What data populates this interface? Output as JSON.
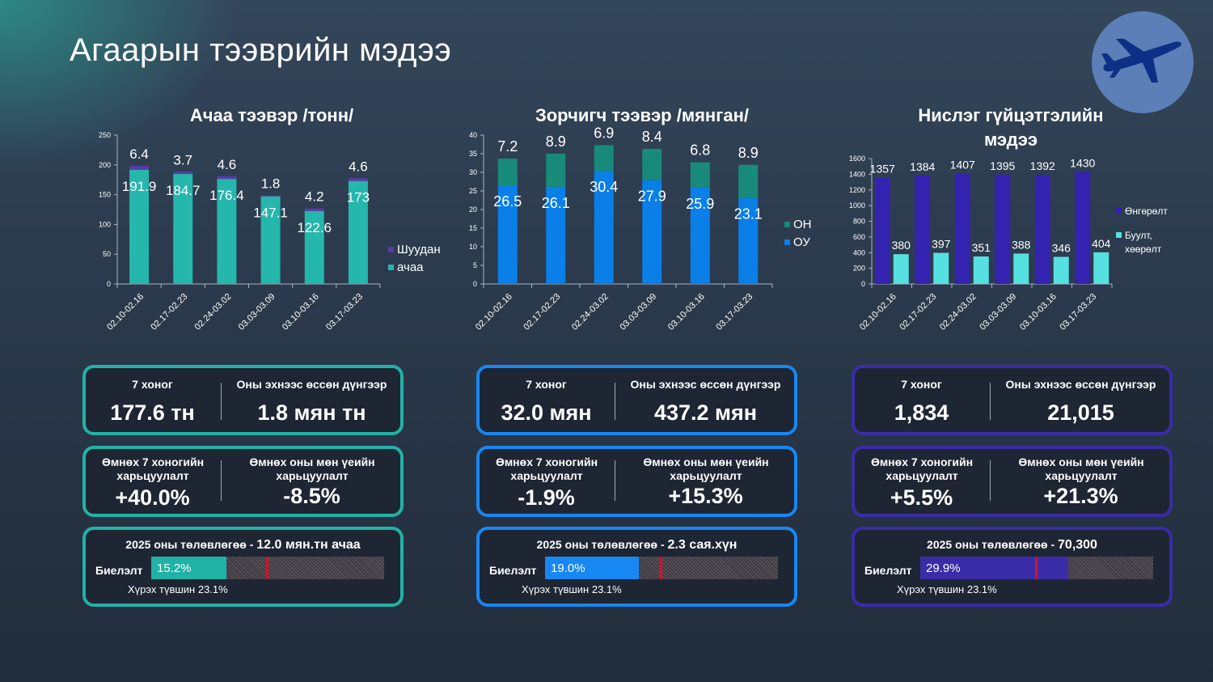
{
  "title": "Агаарын тээврийн мэдээ",
  "colors": {
    "teal": "#21b2a6",
    "blue": "#1787f3",
    "purple": "#3a2ca8",
    "cargo": "#25b6ac",
    "mail": "#5b3aa8",
    "intl": "#0a7fe8",
    "dom": "#188a7a",
    "regular": "#3323b0",
    "charter": "#56e0e0",
    "target": "#d3142a"
  },
  "logo_icon": "airplane-icon",
  "chart_data": [
    {
      "type": "bar",
      "stacked": true,
      "title": "Ачаа тээвэр /тонн/",
      "categories": [
        "02.10-02.16",
        "02.17-02.23",
        "02.24-03.02",
        "03.03-03.09",
        "03.10-03.16",
        "03.17-03.23"
      ],
      "series": [
        {
          "name": "ачаа",
          "values": [
            191.9,
            184.7,
            176.4,
            147.1,
            122.6,
            173
          ],
          "labels": [
            "191.9",
            "184.7",
            "176.4",
            "147.1",
            "122.6",
            "173"
          ]
        },
        {
          "name": "Шуудан",
          "values": [
            6.4,
            3.7,
            4.6,
            1.8,
            4.2,
            4.6
          ],
          "labels": [
            "6.4",
            "3.7",
            "4.6",
            "1.8",
            "4.2",
            "4.6"
          ]
        }
      ],
      "ylim": [
        0,
        250
      ],
      "yticks": [
        "0",
        "50",
        "100",
        "150",
        "200",
        "250"
      ],
      "legend": "right"
    },
    {
      "type": "bar",
      "stacked": true,
      "title": "Зорчигч тээвэр /мянган/",
      "categories": [
        "02.10-02.16",
        "02.17-02.23",
        "02.24-03.02",
        "03.03-03.09",
        "03.10-03.16",
        "03.17-03.23"
      ],
      "series": [
        {
          "name": "ОУ",
          "values": [
            26.5,
            26.1,
            30.4,
            27.9,
            25.9,
            23.1
          ],
          "labels": [
            "26.5",
            "26.1",
            "30.4",
            "27.9",
            "25.9",
            "23.1"
          ]
        },
        {
          "name": "ОН",
          "values": [
            7.2,
            8.9,
            6.9,
            8.4,
            6.8,
            8.9
          ],
          "labels": [
            "7.2",
            "8.9",
            "6.9",
            "8.4",
            "6.8",
            "8.9"
          ]
        }
      ],
      "ylim": [
        0,
        40
      ],
      "yticks": [
        "0",
        "5",
        "10",
        "15",
        "20",
        "25",
        "30",
        "35",
        "40"
      ],
      "legend": "right"
    },
    {
      "type": "bar",
      "stacked": false,
      "title": "Нислэг гүйцэтгэлийн мэдээ",
      "categories": [
        "02.10-02.16",
        "02.17-02.23",
        "02.24-03.02",
        "03.03-03.09",
        "03.10-03.16",
        "03.17-03.23"
      ],
      "series": [
        {
          "name": "Өнгөрөлт",
          "values": [
            1357,
            1384,
            1407,
            1395,
            1392,
            1430
          ],
          "labels": [
            "1357",
            "1384",
            "1407",
            "1395",
            "1392",
            "1430"
          ]
        },
        {
          "name": "Буулт, хөөрөлт",
          "values": [
            380,
            397,
            351,
            388,
            346,
            404
          ],
          "labels": [
            "380",
            "397",
            "351",
            "388",
            "346",
            "404"
          ]
        }
      ],
      "ylim": [
        0,
        1600
      ],
      "yticks": [
        "0",
        "200",
        "400",
        "600",
        "800",
        "1000",
        "1200",
        "1400",
        "1600"
      ],
      "legend": "right"
    }
  ],
  "panels": [
    {
      "week_label": "7 хоног",
      "week_value": "177.6 тн",
      "ytd_label": "Оны эхнээс өссөн дүнгээр",
      "ytd_value": "1.8 мян тн",
      "prev_week_label": "Өмнөх 7 хоногийн харьцуулалт",
      "prev_week_value": "+40.0%",
      "prev_year_label": "Өмнөх оны мөн үеийн харьцуулалт",
      "prev_year_value": "-8.5%",
      "plan_prefix": "2025 оны төлөвлөгөө - ",
      "plan_value": "12.0 мян.тн ачаа",
      "fulfil_label": "Биелэлт",
      "fulfil_text": "15.2%",
      "fulfil_pct": 15.2,
      "target_text": "Хүрэх түвшин 23.1%",
      "target_pct": 23.1
    },
    {
      "week_label": "7 хоног",
      "week_value": "32.0 мян",
      "ytd_label": "Оны эхнээс өссөн дүнгээр",
      "ytd_value": "437.2 мян",
      "prev_week_label": "Өмнөх 7 хоногийн харьцуулалт",
      "prev_week_value": "-1.9%",
      "prev_year_label": "Өмнөх оны мөн үеийн харьцуулалт",
      "prev_year_value": "+15.3%",
      "plan_prefix": "2025 оны төлөвлөгөө - ",
      "plan_value": "2.3 сая.хүн",
      "fulfil_label": "Биелэлт",
      "fulfil_text": "19.0%",
      "fulfil_pct": 19.0,
      "target_text": "Хүрэх түвшин 23.1%",
      "target_pct": 23.1
    },
    {
      "week_label": "7 хоног",
      "week_value": "1,834",
      "ytd_label": "Оны эхнээс өссөн дүнгээр",
      "ytd_value": "21,015",
      "prev_week_label": "Өмнөх 7 хоногийн харьцуулалт",
      "prev_week_value": "+5.5%",
      "prev_year_label": "Өмнөх оны мөн үеийн харьцуулалт",
      "prev_year_value": "+21.3%",
      "plan_prefix": "2025 оны төлөвлөгөө - ",
      "plan_value": "70,300",
      "fulfil_label": "Биелэлт",
      "fulfil_text": "29.9%",
      "fulfil_pct": 29.9,
      "target_text": "Хүрэх түвшин 23.1%",
      "target_pct": 23.1
    }
  ]
}
